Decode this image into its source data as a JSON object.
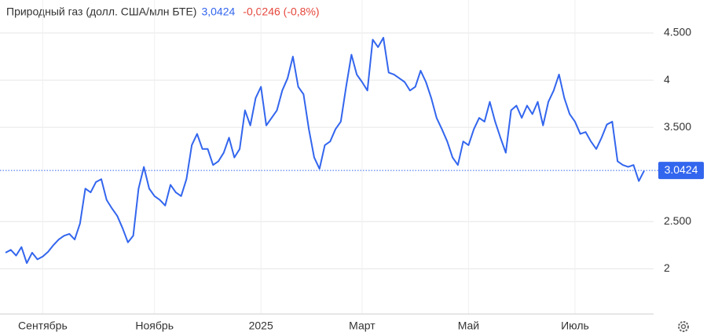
{
  "chart_data": {
    "type": "line",
    "title": "Природный газ (долл. США/млн БТЕ)",
    "price_label": "3,0424",
    "change_label": "-0,0246 (-0,8%)",
    "last_price": {
      "value": 3.0424,
      "label": "3.0424"
    },
    "color": "#3366ee",
    "change_color": "#e5473c",
    "grid": true,
    "ylim": [
      1.52,
      4.85
    ],
    "yticks": [
      {
        "value": 2,
        "label": "2"
      },
      {
        "value": 2.5,
        "label": "2.500"
      },
      {
        "value": 3.5,
        "label": "3.500"
      },
      {
        "value": 4,
        "label": "4"
      },
      {
        "value": 4.5,
        "label": "4.500"
      }
    ],
    "categories": [
      null,
      null,
      null,
      null,
      null,
      null,
      null,
      "Сентябрь",
      null,
      null,
      null,
      null,
      null,
      null,
      null,
      null,
      null,
      null,
      null,
      null,
      null,
      null,
      null,
      null,
      null,
      null,
      null,
      null,
      "Ноябрь",
      null,
      null,
      null,
      null,
      null,
      null,
      null,
      null,
      null,
      null,
      null,
      null,
      null,
      null,
      null,
      null,
      null,
      null,
      null,
      "2025",
      null,
      null,
      null,
      null,
      null,
      null,
      null,
      null,
      null,
      null,
      null,
      null,
      null,
      null,
      null,
      null,
      null,
      null,
      "Март",
      null,
      null,
      null,
      null,
      null,
      null,
      null,
      null,
      null,
      null,
      null,
      null,
      null,
      null,
      null,
      null,
      null,
      null,
      null,
      "Май",
      null,
      null,
      null,
      null,
      null,
      null,
      null,
      null,
      null,
      null,
      null,
      null,
      null,
      null,
      null,
      null,
      null,
      null,
      null,
      "Июль",
      null,
      null,
      null,
      null,
      null,
      null,
      null,
      null,
      null,
      null,
      null,
      null,
      null
    ],
    "values": [
      2.17,
      2.2,
      2.14,
      2.23,
      2.06,
      2.17,
      2.1,
      2.13,
      2.18,
      2.25,
      2.31,
      2.35,
      2.37,
      2.31,
      2.48,
      2.85,
      2.81,
      2.92,
      2.95,
      2.73,
      2.64,
      2.56,
      2.43,
      2.28,
      2.35,
      2.85,
      3.08,
      2.85,
      2.77,
      2.73,
      2.67,
      2.89,
      2.81,
      2.77,
      2.95,
      3.31,
      3.43,
      3.27,
      3.27,
      3.1,
      3.14,
      3.23,
      3.39,
      3.18,
      3.27,
      3.68,
      3.52,
      3.81,
      3.93,
      3.52,
      3.6,
      3.68,
      3.89,
      4.02,
      4.25,
      3.93,
      3.85,
      3.48,
      3.18,
      3.06,
      3.31,
      3.35,
      3.48,
      3.56,
      3.93,
      4.27,
      4.06,
      3.98,
      3.89,
      4.43,
      4.35,
      4.45,
      4.08,
      4.06,
      4.02,
      3.98,
      3.89,
      3.93,
      4.1,
      3.98,
      3.81,
      3.6,
      3.48,
      3.35,
      3.18,
      3.1,
      3.35,
      3.31,
      3.48,
      3.6,
      3.56,
      3.77,
      3.56,
      3.39,
      3.23,
      3.68,
      3.73,
      3.6,
      3.73,
      3.64,
      3.77,
      3.52,
      3.77,
      3.89,
      4.06,
      3.81,
      3.64,
      3.56,
      3.43,
      3.45,
      3.35,
      3.27,
      3.39,
      3.53,
      3.56,
      3.14,
      3.1,
      3.08,
      3.1,
      2.93,
      3.04
    ]
  }
}
